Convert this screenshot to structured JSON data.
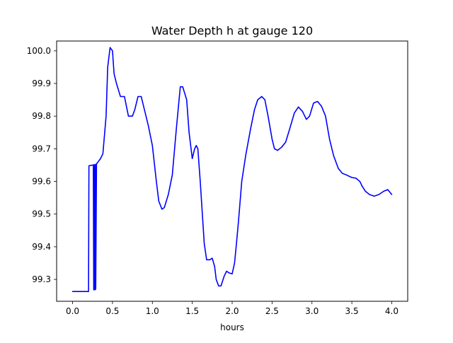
{
  "chart_data": {
    "type": "line",
    "title": "Water Depth h at gauge 120",
    "xlabel": "hours",
    "ylabel": "",
    "xlim": [
      -0.2,
      4.2
    ],
    "ylim": [
      99.233,
      100.03
    ],
    "grid": false,
    "legend": "none",
    "xticks": [
      {
        "value": 0.0,
        "label": "0.0"
      },
      {
        "value": 0.5,
        "label": "0.5"
      },
      {
        "value": 1.0,
        "label": "1.0"
      },
      {
        "value": 1.5,
        "label": "1.5"
      },
      {
        "value": 2.0,
        "label": "2.0"
      },
      {
        "value": 2.5,
        "label": "2.5"
      },
      {
        "value": 3.0,
        "label": "3.0"
      },
      {
        "value": 3.5,
        "label": "3.5"
      },
      {
        "value": 4.0,
        "label": "4.0"
      }
    ],
    "yticks": [
      {
        "value": 99.3,
        "label": "99.3"
      },
      {
        "value": 99.4,
        "label": "99.4"
      },
      {
        "value": 99.5,
        "label": "99.5"
      },
      {
        "value": 99.6,
        "label": "99.6"
      },
      {
        "value": 99.7,
        "label": "99.7"
      },
      {
        "value": 99.8,
        "label": "99.8"
      },
      {
        "value": 99.9,
        "label": "99.9"
      },
      {
        "value": 100.0,
        "label": "100.0"
      }
    ],
    "series": [
      {
        "color": "#0000ff",
        "x": [
          0.0,
          0.2,
          0.205,
          0.25,
          0.26,
          0.265,
          0.27,
          0.28,
          0.285,
          0.29,
          0.3,
          0.305,
          0.32,
          0.35,
          0.38,
          0.42,
          0.44,
          0.47,
          0.5,
          0.52,
          0.55,
          0.6,
          0.65,
          0.7,
          0.75,
          0.78,
          0.82,
          0.86,
          0.9,
          0.95,
          1.0,
          1.05,
          1.08,
          1.12,
          1.15,
          1.2,
          1.25,
          1.3,
          1.35,
          1.38,
          1.43,
          1.46,
          1.5,
          1.53,
          1.55,
          1.57,
          1.6,
          1.65,
          1.68,
          1.72,
          1.75,
          1.78,
          1.8,
          1.83,
          1.86,
          1.9,
          1.93,
          1.96,
          2.0,
          2.03,
          2.05,
          2.08,
          2.12,
          2.17,
          2.23,
          2.28,
          2.32,
          2.37,
          2.41,
          2.45,
          2.5,
          2.53,
          2.57,
          2.62,
          2.67,
          2.72,
          2.78,
          2.83,
          2.88,
          2.93,
          2.97,
          3.02,
          3.07,
          3.12,
          3.17,
          3.22,
          3.27,
          3.33,
          3.38,
          3.43,
          3.5,
          3.55,
          3.6,
          3.63,
          3.67,
          3.72,
          3.78,
          3.84,
          3.9,
          3.95,
          4.0
        ],
        "y": [
          99.263,
          99.263,
          99.648,
          99.65,
          99.65,
          99.268,
          99.652,
          99.268,
          99.652,
          99.27,
          99.655,
          99.655,
          99.66,
          99.67,
          99.685,
          99.8,
          99.95,
          100.01,
          100.0,
          99.93,
          99.9,
          99.86,
          99.86,
          99.8,
          99.8,
          99.82,
          99.86,
          99.86,
          99.82,
          99.77,
          99.71,
          99.6,
          99.54,
          99.515,
          99.52,
          99.56,
          99.62,
          99.76,
          99.89,
          99.89,
          99.85,
          99.75,
          99.67,
          99.7,
          99.71,
          99.7,
          99.6,
          99.41,
          99.36,
          99.36,
          99.365,
          99.34,
          99.3,
          99.28,
          99.28,
          99.31,
          99.325,
          99.32,
          99.317,
          99.35,
          99.4,
          99.48,
          99.6,
          99.68,
          99.76,
          99.82,
          99.85,
          99.86,
          99.85,
          99.8,
          99.73,
          99.7,
          99.695,
          99.705,
          99.72,
          99.76,
          99.81,
          99.828,
          99.815,
          99.79,
          99.8,
          99.84,
          99.845,
          99.83,
          99.8,
          99.73,
          99.68,
          99.64,
          99.625,
          99.62,
          99.612,
          99.61,
          99.6,
          99.585,
          99.57,
          99.56,
          99.555,
          99.56,
          99.57,
          99.575,
          99.56
        ]
      }
    ]
  }
}
